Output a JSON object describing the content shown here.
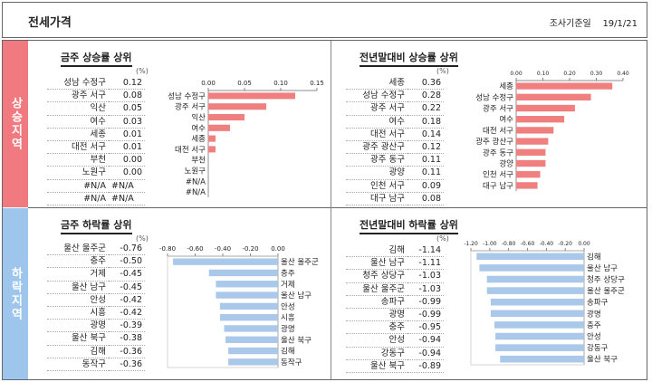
{
  "header": {
    "title": "전세가격",
    "date_label": "조사기준일",
    "date": "19/1/21"
  },
  "sections": {
    "rise": "상승지역",
    "fall": "하락지역"
  },
  "unit": "(%)",
  "colors": {
    "rise_bar": "#f08080",
    "fall_bar": "#a9c8ea",
    "rise_side": "#f07a80",
    "fall_side": "#9ec6ec"
  },
  "chart_data": [
    {
      "type": "bar",
      "title": "금주 상승률 상위",
      "categories": [
        "성남 수정구",
        "광주 서구",
        "익산",
        "여수",
        "세종",
        "대전 서구",
        "부천",
        "노원구",
        "#N/A",
        "#N/A"
      ],
      "labels": [
        "성남 수정구",
        "광주 서구",
        "익산",
        "여수",
        "세종",
        "대전 서구",
        "부천",
        "노원구",
        "#N/A",
        "#N/A"
      ],
      "values": [
        0.12,
        0.08,
        0.05,
        0.03,
        0.01,
        0.01,
        0.0,
        0.0,
        null,
        null
      ],
      "display": [
        "0.12",
        "0.08",
        "0.05",
        "0.03",
        "0.01",
        "0.01",
        "0.00",
        "0.00",
        "#N/A",
        "#N/A"
      ],
      "xlim": [
        0,
        0.15
      ],
      "ticks": [
        "0.00",
        "0.05",
        "0.10",
        "0.15"
      ],
      "tick_values": [
        0,
        0.05,
        0.1,
        0.15
      ]
    },
    {
      "type": "bar",
      "title": "전년말대비 상승률 상위",
      "categories": [
        "세종",
        "성남 수정구",
        "광주 서구",
        "여수",
        "대전 서구",
        "광주 광산구",
        "광주 동구",
        "광양",
        "인천 서구",
        "대구 남구"
      ],
      "labels": [
        "세종",
        "성남 수정구",
        "광주 서구",
        "여수",
        "대전 서구",
        "광주 광산구",
        "광주 동구",
        "광양",
        "인천 서구",
        "대구 남구"
      ],
      "values": [
        0.36,
        0.28,
        0.22,
        0.18,
        0.14,
        0.12,
        0.11,
        0.11,
        0.09,
        0.08
      ],
      "display": [
        "0.36",
        "0.28",
        "0.22",
        "0.18",
        "0.14",
        "0.12",
        "0.11",
        "0.11",
        "0.09",
        "0.08"
      ],
      "xlim": [
        0,
        0.4
      ],
      "ticks": [
        "0.00",
        "0.10",
        "0.20",
        "0.30",
        "0.40"
      ],
      "tick_values": [
        0,
        0.1,
        0.2,
        0.3,
        0.4
      ]
    },
    {
      "type": "bar",
      "title": "금주 하락률 상위",
      "categories": [
        "울산 울주군",
        "충주",
        "거제",
        "울산 남구",
        "안성",
        "시흥",
        "광명",
        "울산 북구",
        "김해",
        "동작구"
      ],
      "labels": [
        "울산 울주군",
        "충주",
        "거제",
        "울산 남구",
        "안성",
        "시흥",
        "광명",
        "울산 북구",
        "김해",
        "동작구"
      ],
      "values": [
        -0.76,
        -0.5,
        -0.45,
        -0.45,
        -0.42,
        -0.42,
        -0.39,
        -0.38,
        -0.36,
        -0.36
      ],
      "display": [
        "-0.76",
        "-0.50",
        "-0.45",
        "-0.45",
        "-0.42",
        "-0.42",
        "-0.39",
        "-0.38",
        "-0.36",
        "-0.36"
      ],
      "xlim": [
        -0.8,
        0
      ],
      "ticks": [
        "-0.80",
        "-0.60",
        "-0.40",
        "-0.20",
        "0.00"
      ],
      "tick_values": [
        -0.8,
        -0.6,
        -0.4,
        -0.2,
        0
      ]
    },
    {
      "type": "bar",
      "title": "전년말대비 하락률 상위",
      "categories": [
        "김해",
        "울산 남구",
        "청주 상당구",
        "울산 울주군",
        "송파구",
        "광명",
        "충주",
        "안성",
        "강동구",
        "울산 북구"
      ],
      "labels": [
        "김해",
        "울산 남구",
        "청주 상당구",
        "울산 울주군",
        "송파구",
        "광명",
        "충주",
        "안성",
        "강동구",
        "울산 북구"
      ],
      "values": [
        -1.14,
        -1.11,
        -1.03,
        -1.03,
        -0.99,
        -0.99,
        -0.95,
        -0.94,
        -0.94,
        -0.89
      ],
      "display": [
        "-1.14",
        "-1.11",
        "-1.03",
        "-1.03",
        "-0.99",
        "-0.99",
        "-0.95",
        "-0.94",
        "-0.94",
        "-0.89"
      ],
      "xlim": [
        -1.2,
        0
      ],
      "ticks": [
        "-1.20",
        "-1.00",
        "-0.80",
        "-0.60",
        "-0.40",
        "-0.20",
        "0.00"
      ],
      "tick_values": [
        -1.2,
        -1.0,
        -0.8,
        -0.6,
        -0.4,
        -0.2,
        0
      ]
    }
  ]
}
